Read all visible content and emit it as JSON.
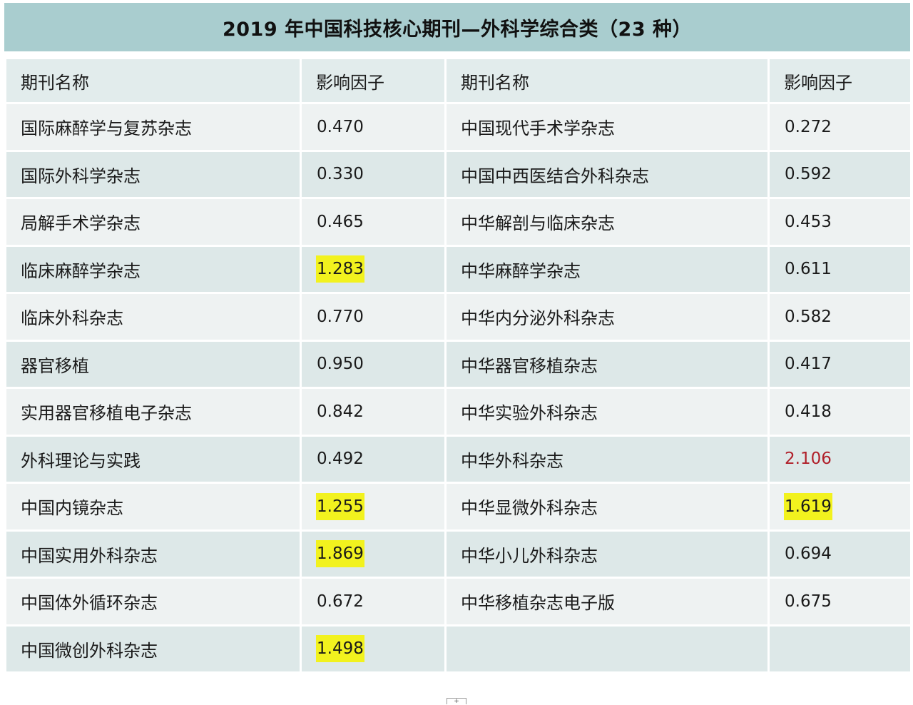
{
  "title": "2019 年中国科技核心期刊—外科学综合类（23 种）",
  "headers": [
    "期刊名称",
    "影响因子",
    "期刊名称",
    "影响因子"
  ],
  "rows": [
    {
      "left_name": "国际麻醉学与复苏杂志",
      "left_if": "0.470",
      "left_hl": false,
      "right_name": "中国现代手术学杂志",
      "right_if": "0.272",
      "right_hl": false,
      "right_red": false
    },
    {
      "left_name": "国际外科学杂志",
      "left_if": "0.330",
      "left_hl": false,
      "right_name": "中国中西医结合外科杂志",
      "right_if": "0.592",
      "right_hl": false,
      "right_red": false
    },
    {
      "left_name": "局解手术学杂志",
      "left_if": "0.465",
      "left_hl": false,
      "right_name": "中华解剖与临床杂志",
      "right_if": "0.453",
      "right_hl": false,
      "right_red": false
    },
    {
      "left_name": "临床麻醉学杂志",
      "left_if": "1.283",
      "left_hl": true,
      "right_name": "中华麻醉学杂志",
      "right_if": "0.611",
      "right_hl": false,
      "right_red": false
    },
    {
      "left_name": "临床外科杂志",
      "left_if": "0.770",
      "left_hl": false,
      "right_name": "中华内分泌外科杂志",
      "right_if": "0.582",
      "right_hl": false,
      "right_red": false
    },
    {
      "left_name": "器官移植",
      "left_if": "0.950",
      "left_hl": false,
      "right_name": "中华器官移植杂志",
      "right_if": "0.417",
      "right_hl": false,
      "right_red": false
    },
    {
      "left_name": "实用器官移植电子杂志",
      "left_if": "0.842",
      "left_hl": false,
      "right_name": "中华实验外科杂志",
      "right_if": "0.418",
      "right_hl": false,
      "right_red": false
    },
    {
      "left_name": "外科理论与实践",
      "left_if": "0.492",
      "left_hl": false,
      "right_name": "中华外科杂志",
      "right_if": "2.106",
      "right_hl": false,
      "right_red": true
    },
    {
      "left_name": "中国内镜杂志",
      "left_if": "1.255",
      "left_hl": true,
      "right_name": "中华显微外科杂志",
      "right_if": "1.619",
      "right_hl": true,
      "right_red": false
    },
    {
      "left_name": "中国实用外科杂志",
      "left_if": "1.869",
      "left_hl": true,
      "right_name": "中华小儿外科杂志",
      "right_if": "0.694",
      "right_hl": false,
      "right_red": false
    },
    {
      "left_name": "中国体外循环杂志",
      "left_if": "0.672",
      "left_hl": false,
      "right_name": "中华移植杂志电子版",
      "right_if": "0.675",
      "right_hl": false,
      "right_red": false
    },
    {
      "left_name": "中国微创外科杂志",
      "left_if": "1.498",
      "left_hl": true,
      "right_name": "",
      "right_if": "",
      "right_hl": false,
      "right_red": false
    }
  ],
  "colors": {
    "title_bg": "#a9cdcf",
    "header_bg": "#e2ecec",
    "row_light": "#eef2f2",
    "row_dark": "#dde8e8",
    "highlight": "#f2f21e",
    "red_text": "#b0202a"
  },
  "footer_marker": "+"
}
